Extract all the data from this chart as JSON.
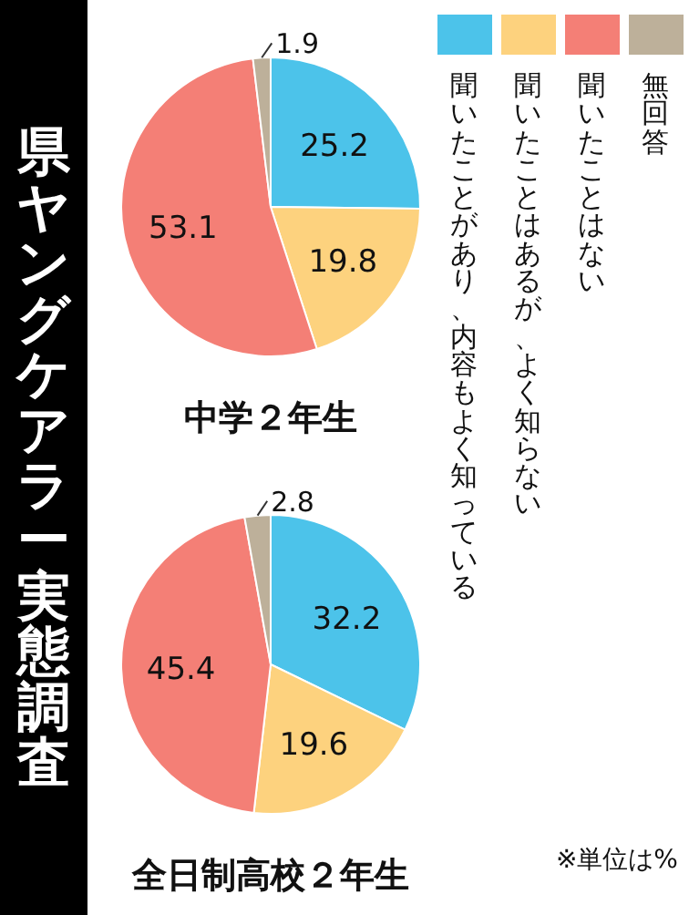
{
  "chart_data": [
    {
      "type": "pie",
      "title": "県ヤングケアラー実態調査",
      "subtitle": "中学２年生",
      "categories": [
        "聞いたことがあり、内容もよく知っている",
        "聞いたことはあるが、よく知らない",
        "聞いたことはない",
        "無回答"
      ],
      "values": [
        25.2,
        19.8,
        53.1,
        1.9
      ],
      "colors": [
        "#4cc3ea",
        "#fdd27e",
        "#f47f76",
        "#bdb09a"
      ],
      "data_labels": true,
      "legend": "right"
    },
    {
      "type": "pie",
      "subtitle": "全日制高校２年生",
      "values": [
        32.2,
        19.6,
        45.4,
        2.8
      ],
      "colors": [
        "#4cc3ea",
        "#fdd27e",
        "#f47f76",
        "#bdb09a"
      ],
      "data_labels": true,
      "annotations": [
        "※単位は%"
      ]
    }
  ]
}
